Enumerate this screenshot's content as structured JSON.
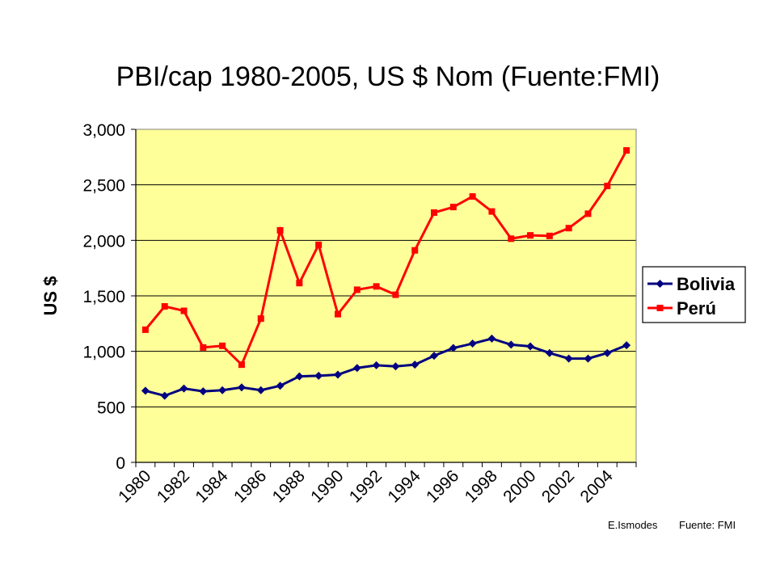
{
  "chart_data": {
    "type": "line",
    "title": "PBI/cap 1980-2005, US $ Nom (Fuente:FMI)",
    "ylabel": "US $",
    "xlabel": "",
    "ylim": [
      0,
      3000
    ],
    "yticks": [
      "0",
      "500",
      "1,000",
      "1,500",
      "2,000",
      "2,500",
      "3,000"
    ],
    "ytick_values": [
      0,
      500,
      1000,
      1500,
      2000,
      2500,
      3000
    ],
    "x": [
      1980,
      1981,
      1982,
      1983,
      1984,
      1985,
      1986,
      1987,
      1988,
      1989,
      1990,
      1991,
      1992,
      1993,
      1994,
      1995,
      1996,
      1997,
      1998,
      1999,
      2000,
      2001,
      2002,
      2003,
      2004,
      2005
    ],
    "xtick_labels": [
      "1980",
      "1982",
      "1984",
      "1986",
      "1988",
      "1990",
      "1992",
      "1994",
      "1996",
      "1998",
      "2000",
      "2002",
      "2004"
    ],
    "grid": true,
    "legend_position": "right",
    "plot_background": "#ffff99",
    "series": [
      {
        "name": "Bolivia",
        "color": "#000080",
        "marker": "diamond",
        "values": [
          645,
          600,
          665,
          640,
          650,
          675,
          650,
          690,
          775,
          780,
          790,
          850,
          875,
          865,
          880,
          960,
          1030,
          1070,
          1115,
          1060,
          1045,
          985,
          935,
          935,
          985,
          1055
        ]
      },
      {
        "name": "Perú",
        "color": "#ff0000",
        "marker": "square",
        "values": [
          1195,
          1405,
          1365,
          1035,
          1050,
          880,
          1295,
          2090,
          1615,
          1960,
          1335,
          1555,
          1585,
          1510,
          1910,
          2250,
          2300,
          2395,
          2260,
          2015,
          2045,
          2040,
          2110,
          2240,
          2490,
          2810
        ]
      }
    ]
  },
  "credits": {
    "author": "E.Ismodes",
    "source": "Fuente: FMI"
  }
}
